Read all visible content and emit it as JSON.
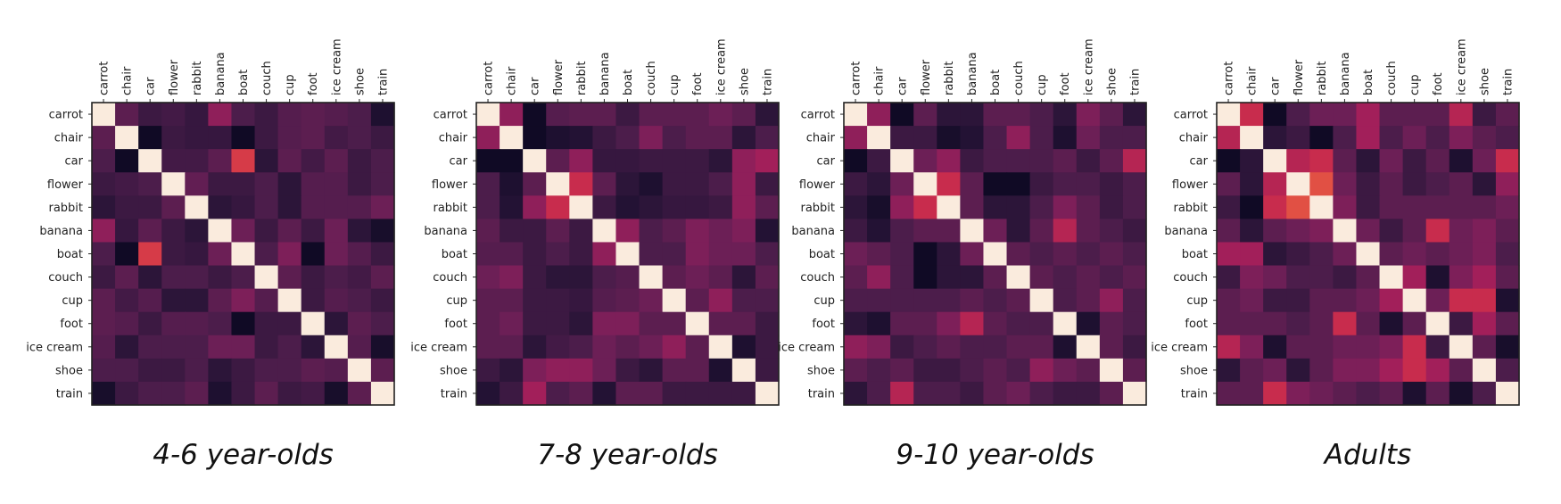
{
  "chart_data": [
    {
      "type": "heatmap",
      "title": "4-6 year-olds",
      "x_labels": [
        "carrot",
        "chair",
        "car",
        "flower",
        "rabbit",
        "banana",
        "boat",
        "couch",
        "cup",
        "foot",
        "ice cream",
        "shoe",
        "train"
      ],
      "y_labels": [
        "carrot",
        "chair",
        "car",
        "flower",
        "rabbit",
        "banana",
        "boat",
        "couch",
        "cup",
        "foot",
        "ice cream",
        "shoe",
        "train"
      ],
      "values": [
        [
          1.0,
          0.3,
          0.2,
          0.22,
          0.18,
          0.45,
          0.25,
          0.2,
          0.28,
          0.3,
          0.28,
          0.25,
          0.1
        ],
        [
          0.3,
          1.0,
          0.05,
          0.2,
          0.18,
          0.18,
          0.05,
          0.2,
          0.28,
          0.3,
          0.22,
          0.25,
          0.2
        ],
        [
          0.25,
          0.05,
          1.0,
          0.22,
          0.22,
          0.3,
          0.65,
          0.15,
          0.3,
          0.22,
          0.3,
          0.2,
          0.25
        ],
        [
          0.2,
          0.22,
          0.25,
          1.0,
          0.32,
          0.2,
          0.2,
          0.25,
          0.15,
          0.28,
          0.28,
          0.2,
          0.25
        ],
        [
          0.15,
          0.2,
          0.2,
          0.3,
          1.0,
          0.15,
          0.18,
          0.25,
          0.15,
          0.28,
          0.28,
          0.28,
          0.35
        ],
        [
          0.45,
          0.18,
          0.3,
          0.2,
          0.15,
          1.0,
          0.35,
          0.2,
          0.3,
          0.2,
          0.35,
          0.15,
          0.08
        ],
        [
          0.25,
          0.05,
          0.65,
          0.2,
          0.18,
          0.35,
          1.0,
          0.25,
          0.4,
          0.05,
          0.35,
          0.28,
          0.2
        ],
        [
          0.2,
          0.3,
          0.15,
          0.25,
          0.25,
          0.2,
          0.25,
          1.0,
          0.3,
          0.2,
          0.25,
          0.22,
          0.3
        ],
        [
          0.3,
          0.22,
          0.28,
          0.15,
          0.15,
          0.3,
          0.4,
          0.28,
          1.0,
          0.2,
          0.28,
          0.25,
          0.2
        ],
        [
          0.3,
          0.28,
          0.2,
          0.28,
          0.28,
          0.25,
          0.05,
          0.2,
          0.2,
          1.0,
          0.15,
          0.3,
          0.25
        ],
        [
          0.28,
          0.15,
          0.25,
          0.25,
          0.25,
          0.35,
          0.35,
          0.2,
          0.25,
          0.15,
          1.0,
          0.28,
          0.08
        ],
        [
          0.25,
          0.25,
          0.2,
          0.2,
          0.25,
          0.15,
          0.2,
          0.25,
          0.25,
          0.3,
          0.28,
          1.0,
          0.3
        ],
        [
          0.08,
          0.2,
          0.25,
          0.25,
          0.3,
          0.1,
          0.2,
          0.3,
          0.2,
          0.22,
          0.08,
          0.3,
          1.0
        ]
      ],
      "vmin": 0,
      "vmax": 1,
      "grid": false
    },
    {
      "type": "heatmap",
      "title": "7-8 year-olds",
      "x_labels": [
        "carrot",
        "chair",
        "car",
        "flower",
        "rabbit",
        "banana",
        "boat",
        "couch",
        "cup",
        "foot",
        "ice cream",
        "shoe",
        "train"
      ],
      "y_labels": [
        "carrot",
        "chair",
        "car",
        "flower",
        "rabbit",
        "banana",
        "boat",
        "couch",
        "cup",
        "foot",
        "ice cream",
        "shoe",
        "train"
      ],
      "values": [
        [
          1.0,
          0.45,
          0.05,
          0.28,
          0.3,
          0.3,
          0.2,
          0.3,
          0.3,
          0.3,
          0.35,
          0.3,
          0.15
        ],
        [
          0.45,
          1.0,
          0.05,
          0.1,
          0.12,
          0.2,
          0.25,
          0.4,
          0.25,
          0.3,
          0.3,
          0.15,
          0.25
        ],
        [
          0.05,
          0.05,
          1.0,
          0.3,
          0.45,
          0.18,
          0.18,
          0.2,
          0.2,
          0.2,
          0.15,
          0.45,
          0.5
        ],
        [
          0.25,
          0.1,
          0.3,
          1.0,
          0.6,
          0.3,
          0.15,
          0.1,
          0.2,
          0.2,
          0.25,
          0.45,
          0.2
        ],
        [
          0.25,
          0.12,
          0.45,
          0.6,
          1.0,
          0.2,
          0.12,
          0.15,
          0.18,
          0.18,
          0.2,
          0.45,
          0.3
        ],
        [
          0.3,
          0.2,
          0.2,
          0.3,
          0.2,
          1.0,
          0.45,
          0.25,
          0.3,
          0.4,
          0.35,
          0.4,
          0.12
        ],
        [
          0.28,
          0.28,
          0.2,
          0.25,
          0.2,
          0.45,
          1.0,
          0.25,
          0.25,
          0.4,
          0.35,
          0.35,
          0.25
        ],
        [
          0.35,
          0.4,
          0.2,
          0.15,
          0.15,
          0.25,
          0.28,
          1.0,
          0.3,
          0.35,
          0.3,
          0.15,
          0.3
        ],
        [
          0.3,
          0.3,
          0.2,
          0.2,
          0.18,
          0.28,
          0.3,
          0.35,
          1.0,
          0.3,
          0.45,
          0.25,
          0.25
        ],
        [
          0.3,
          0.35,
          0.2,
          0.2,
          0.15,
          0.4,
          0.4,
          0.3,
          0.3,
          1.0,
          0.3,
          0.3,
          0.2
        ],
        [
          0.3,
          0.3,
          0.15,
          0.22,
          0.25,
          0.35,
          0.3,
          0.35,
          0.45,
          0.3,
          1.0,
          0.1,
          0.2
        ],
        [
          0.2,
          0.15,
          0.4,
          0.45,
          0.45,
          0.35,
          0.2,
          0.15,
          0.3,
          0.3,
          0.1,
          1.0,
          0.2
        ],
        [
          0.12,
          0.2,
          0.5,
          0.25,
          0.3,
          0.12,
          0.3,
          0.3,
          0.2,
          0.2,
          0.2,
          0.2,
          1.0
        ]
      ],
      "vmin": 0,
      "vmax": 1,
      "grid": false
    },
    {
      "type": "heatmap",
      "title": "9-10 year-olds",
      "x_labels": [
        "carrot",
        "chair",
        "car",
        "flower",
        "rabbit",
        "banana",
        "boat",
        "couch",
        "cup",
        "foot",
        "ice cream",
        "shoe",
        "train"
      ],
      "y_labels": [
        "carrot",
        "chair",
        "car",
        "flower",
        "rabbit",
        "banana",
        "boat",
        "couch",
        "cup",
        "foot",
        "ice cream",
        "shoe",
        "train"
      ],
      "values": [
        [
          1.0,
          0.45,
          0.05,
          0.3,
          0.15,
          0.15,
          0.3,
          0.3,
          0.25,
          0.15,
          0.4,
          0.3,
          0.15
        ],
        [
          0.45,
          1.0,
          0.2,
          0.2,
          0.08,
          0.12,
          0.25,
          0.45,
          0.25,
          0.1,
          0.35,
          0.25,
          0.25
        ],
        [
          0.05,
          0.2,
          1.0,
          0.35,
          0.45,
          0.2,
          0.25,
          0.25,
          0.25,
          0.3,
          0.2,
          0.3,
          0.55
        ],
        [
          0.2,
          0.15,
          0.35,
          1.0,
          0.6,
          0.3,
          0.05,
          0.05,
          0.2,
          0.25,
          0.25,
          0.2,
          0.25
        ],
        [
          0.15,
          0.08,
          0.45,
          0.6,
          1.0,
          0.3,
          0.15,
          0.15,
          0.25,
          0.4,
          0.3,
          0.2,
          0.25
        ],
        [
          0.2,
          0.12,
          0.25,
          0.3,
          0.3,
          1.0,
          0.35,
          0.15,
          0.3,
          0.55,
          0.3,
          0.25,
          0.2
        ],
        [
          0.35,
          0.3,
          0.25,
          0.05,
          0.15,
          0.35,
          1.0,
          0.3,
          0.25,
          0.3,
          0.25,
          0.3,
          0.25
        ],
        [
          0.3,
          0.45,
          0.25,
          0.05,
          0.15,
          0.15,
          0.3,
          1.0,
          0.3,
          0.25,
          0.3,
          0.25,
          0.3
        ],
        [
          0.25,
          0.25,
          0.25,
          0.25,
          0.25,
          0.3,
          0.25,
          0.3,
          1.0,
          0.25,
          0.3,
          0.45,
          0.25
        ],
        [
          0.15,
          0.1,
          0.3,
          0.3,
          0.4,
          0.55,
          0.3,
          0.25,
          0.25,
          1.0,
          0.1,
          0.3,
          0.25
        ],
        [
          0.45,
          0.4,
          0.2,
          0.25,
          0.3,
          0.25,
          0.25,
          0.3,
          0.3,
          0.1,
          1.0,
          0.3,
          0.2
        ],
        [
          0.3,
          0.25,
          0.3,
          0.2,
          0.2,
          0.25,
          0.3,
          0.25,
          0.45,
          0.35,
          0.3,
          1.0,
          0.3
        ],
        [
          0.15,
          0.25,
          0.55,
          0.25,
          0.25,
          0.2,
          0.3,
          0.35,
          0.25,
          0.2,
          0.2,
          0.3,
          1.0
        ]
      ],
      "vmin": 0,
      "vmax": 1,
      "grid": false
    },
    {
      "type": "heatmap",
      "title": "Adults",
      "x_labels": [
        "carrot",
        "chair",
        "car",
        "flower",
        "rabbit",
        "banana",
        "boat",
        "couch",
        "cup",
        "foot",
        "ice cream",
        "shoe",
        "train"
      ],
      "y_labels": [
        "carrot",
        "chair",
        "car",
        "flower",
        "rabbit",
        "banana",
        "boat",
        "couch",
        "cup",
        "foot",
        "ice cream",
        "shoe",
        "train"
      ],
      "values": [
        [
          1.0,
          0.6,
          0.05,
          0.25,
          0.35,
          0.35,
          0.5,
          0.3,
          0.3,
          0.3,
          0.55,
          0.2,
          0.3
        ],
        [
          0.55,
          1.0,
          0.15,
          0.2,
          0.05,
          0.25,
          0.5,
          0.25,
          0.35,
          0.25,
          0.4,
          0.3,
          0.25
        ],
        [
          0.05,
          0.15,
          1.0,
          0.55,
          0.6,
          0.3,
          0.15,
          0.35,
          0.2,
          0.3,
          0.1,
          0.35,
          0.6
        ],
        [
          0.3,
          0.15,
          0.55,
          1.0,
          0.7,
          0.35,
          0.2,
          0.3,
          0.2,
          0.25,
          0.3,
          0.15,
          0.45
        ],
        [
          0.2,
          0.05,
          0.6,
          0.7,
          1.0,
          0.4,
          0.2,
          0.3,
          0.3,
          0.3,
          0.3,
          0.3,
          0.35
        ],
        [
          0.3,
          0.15,
          0.3,
          0.35,
          0.4,
          1.0,
          0.35,
          0.2,
          0.3,
          0.6,
          0.35,
          0.4,
          0.3
        ],
        [
          0.5,
          0.5,
          0.15,
          0.2,
          0.25,
          0.35,
          1.0,
          0.3,
          0.35,
          0.3,
          0.35,
          0.4,
          0.25
        ],
        [
          0.2,
          0.4,
          0.35,
          0.25,
          0.25,
          0.2,
          0.3,
          1.0,
          0.5,
          0.1,
          0.4,
          0.5,
          0.3
        ],
        [
          0.3,
          0.35,
          0.2,
          0.2,
          0.3,
          0.3,
          0.35,
          0.5,
          1.0,
          0.35,
          0.6,
          0.6,
          0.1
        ],
        [
          0.3,
          0.3,
          0.3,
          0.25,
          0.3,
          0.6,
          0.3,
          0.1,
          0.3,
          1.0,
          0.2,
          0.5,
          0.3
        ],
        [
          0.55,
          0.4,
          0.1,
          0.3,
          0.3,
          0.35,
          0.35,
          0.4,
          0.6,
          0.2,
          1.0,
          0.3,
          0.08
        ],
        [
          0.15,
          0.3,
          0.35,
          0.15,
          0.3,
          0.4,
          0.4,
          0.5,
          0.6,
          0.5,
          0.3,
          1.0,
          0.25
        ],
        [
          0.3,
          0.3,
          0.6,
          0.4,
          0.35,
          0.3,
          0.25,
          0.3,
          0.1,
          0.3,
          0.08,
          0.25,
          1.0
        ]
      ],
      "vmin": 0,
      "vmax": 1,
      "grid": false
    }
  ],
  "colors": {
    "colormap": "rocket",
    "frame": "#222222",
    "text": "#222222"
  }
}
